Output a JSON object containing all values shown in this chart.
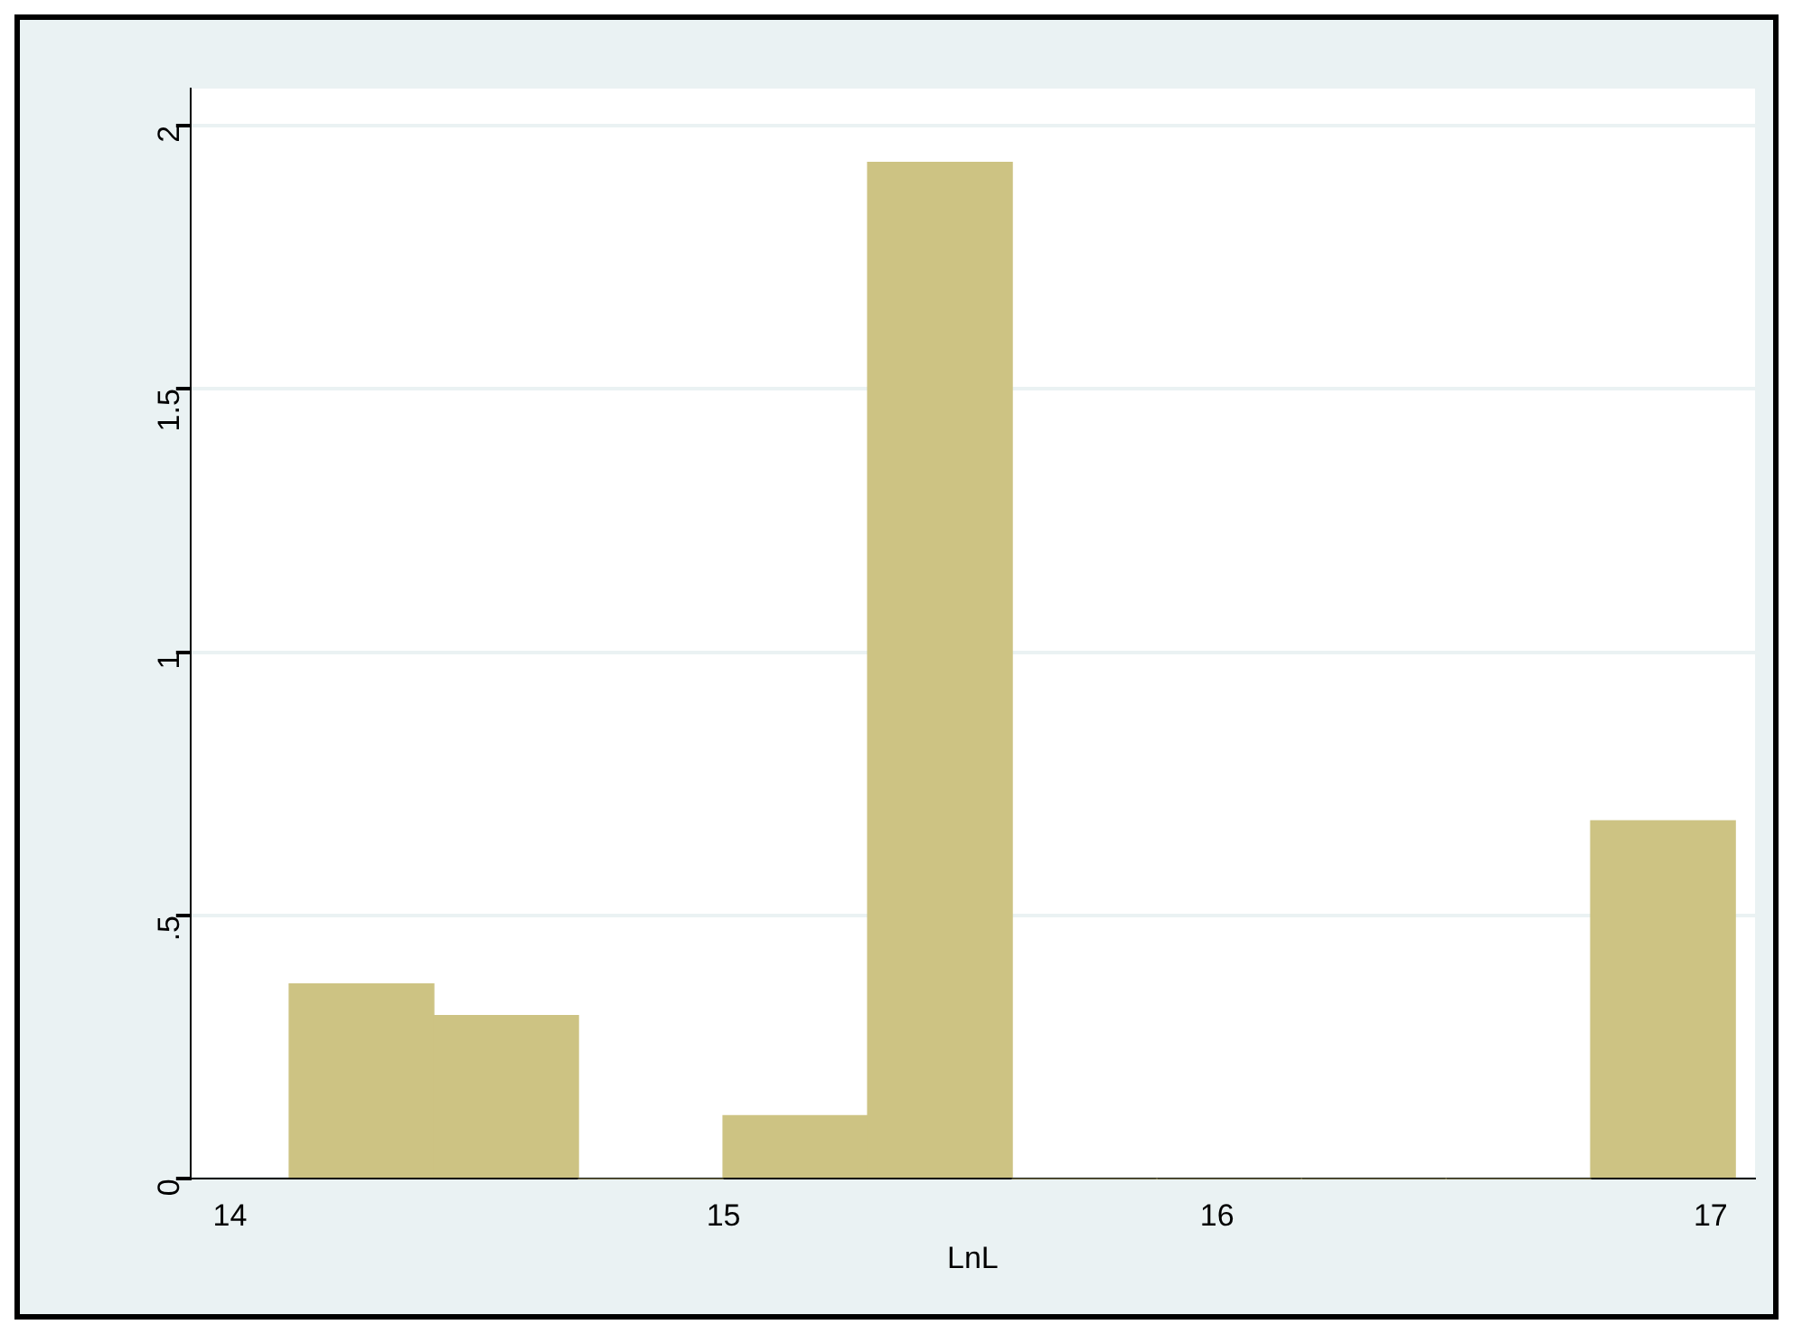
{
  "chart_data": {
    "type": "histogram",
    "xlabel": "LnL",
    "bins": [
      14.12,
      14.413,
      14.706,
      14.999,
      15.292,
      15.585,
      15.878,
      16.171,
      16.464,
      16.757,
      17.05
    ],
    "values": [
      0.37,
      0.31,
      0,
      0.12,
      1.93,
      0,
      0,
      0,
      0,
      0.68
    ],
    "color": "#cdc383",
    "xlim": [
      13.92,
      17.09
    ],
    "xticks": [
      14,
      15,
      16,
      17
    ],
    "ylim": [
      0,
      2.07
    ],
    "yticks": [
      {
        "value": 0,
        "label": "0"
      },
      {
        "value": 0.5,
        "label": ".5"
      },
      {
        "value": 1,
        "label": "1"
      },
      {
        "value": 1.5,
        "label": "1.5"
      },
      {
        "value": 2,
        "label": "2"
      }
    ],
    "grid": "y",
    "legend": false
  }
}
